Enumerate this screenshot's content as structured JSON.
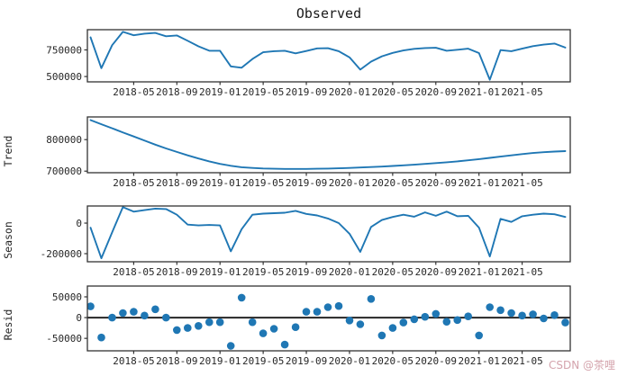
{
  "figure": {
    "watermark": "CSDN @茶哩",
    "colors": {
      "line": "#1f77b4",
      "scatter": "#1f77b4",
      "zero_line": "#262626",
      "axis": "#333333",
      "tick_text": "#262626",
      "watermark": "#d4a3ac"
    },
    "x_tick_labels": [
      "2018-05",
      "2018-09",
      "2019-01",
      "2019-05",
      "2019-09",
      "2020-01",
      "2020-05",
      "2020-09",
      "2021-01",
      "2021-05"
    ],
    "x_tick_month_indices": [
      4,
      8,
      12,
      16,
      20,
      24,
      28,
      32,
      36,
      40
    ]
  },
  "chart_data": [
    {
      "type": "line",
      "name": "observed",
      "title": "Observed",
      "ylabel": "",
      "x": [
        "2018-01",
        "2018-02",
        "2018-03",
        "2018-04",
        "2018-05",
        "2018-06",
        "2018-07",
        "2018-08",
        "2018-09",
        "2018-10",
        "2018-11",
        "2018-12",
        "2019-01",
        "2019-02",
        "2019-03",
        "2019-04",
        "2019-05",
        "2019-06",
        "2019-07",
        "2019-08",
        "2019-09",
        "2019-10",
        "2019-11",
        "2019-12",
        "2020-01",
        "2020-02",
        "2020-03",
        "2020-04",
        "2020-05",
        "2020-06",
        "2020-07",
        "2020-08",
        "2020-09",
        "2020-10",
        "2020-11",
        "2020-12",
        "2021-01",
        "2021-02",
        "2021-03",
        "2021-04",
        "2021-05",
        "2021-06",
        "2021-07",
        "2021-08",
        "2021-09"
      ],
      "values": [
        868000,
        578000,
        795000,
        920000,
        888000,
        903000,
        910000,
        878000,
        886000,
        836000,
        784000,
        742000,
        742000,
        595000,
        583000,
        665000,
        728000,
        738000,
        742000,
        718000,
        740000,
        764000,
        766000,
        738000,
        680000,
        565000,
        640000,
        690000,
        722000,
        745000,
        760000,
        768000,
        770000,
        742000,
        752000,
        762000,
        720000,
        470000,
        748000,
        738000,
        762000,
        785000,
        800000,
        810000,
        772000
      ],
      "yticks": [
        750000,
        500000
      ],
      "ylim": [
        450000,
        940000
      ],
      "grid": false,
      "legend": null
    },
    {
      "type": "line",
      "name": "trend",
      "title": "",
      "ylabel": "Trend",
      "values": [
        862000,
        849000,
        836000,
        823000,
        810000,
        797000,
        784000,
        772000,
        761000,
        750000,
        740000,
        731000,
        723000,
        717000,
        712500,
        710000,
        708500,
        707500,
        707000,
        707000,
        707000,
        707500,
        708000,
        709000,
        710000,
        711500,
        713000,
        714500,
        716500,
        718500,
        720500,
        723000,
        725500,
        728000,
        731000,
        734500,
        738000,
        742000,
        746000,
        750000,
        754000,
        757500,
        760000,
        762000,
        763500
      ],
      "yticks": [
        800000,
        700000
      ],
      "ylim": [
        695000,
        872000
      ],
      "grid": false,
      "legend": null
    },
    {
      "type": "line",
      "name": "season",
      "title": "",
      "ylabel": "Season",
      "values": [
        -30000,
        -230000,
        -60000,
        105000,
        75000,
        85000,
        95000,
        92000,
        55000,
        -10000,
        -15000,
        -12000,
        -15000,
        -185000,
        -40000,
        55000,
        62000,
        65000,
        68000,
        80000,
        60000,
        50000,
        30000,
        0,
        -70000,
        -188000,
        -25000,
        20000,
        40000,
        55000,
        42000,
        70000,
        48000,
        75000,
        45000,
        48000,
        -30000,
        -218000,
        28000,
        8000,
        45000,
        55000,
        62000,
        58000,
        40000
      ],
      "yticks": [
        0,
        -200000
      ],
      "ylim": [
        -253000,
        112000
      ],
      "grid": false,
      "legend": null
    },
    {
      "type": "scatter",
      "name": "resid",
      "title": "",
      "ylabel": "Resid",
      "values": [
        27000,
        -48000,
        0,
        11000,
        14000,
        5000,
        20000,
        0,
        -30000,
        -25000,
        -20000,
        -11000,
        -11000,
        -68000,
        48000,
        -11000,
        -38000,
        -27000,
        -65000,
        -23000,
        14000,
        14000,
        25000,
        28000,
        -7000,
        -16000,
        45000,
        -43000,
        -25000,
        -12000,
        -4000,
        2000,
        9000,
        -10000,
        -6000,
        3000,
        -43000,
        25000,
        18000,
        11000,
        5000,
        8000,
        -2000,
        6000,
        -12000
      ],
      "yticks": [
        50000,
        0,
        -50000
      ],
      "ylim": [
        -80000,
        76000
      ],
      "zero_line": true,
      "grid": false,
      "legend": null
    }
  ]
}
